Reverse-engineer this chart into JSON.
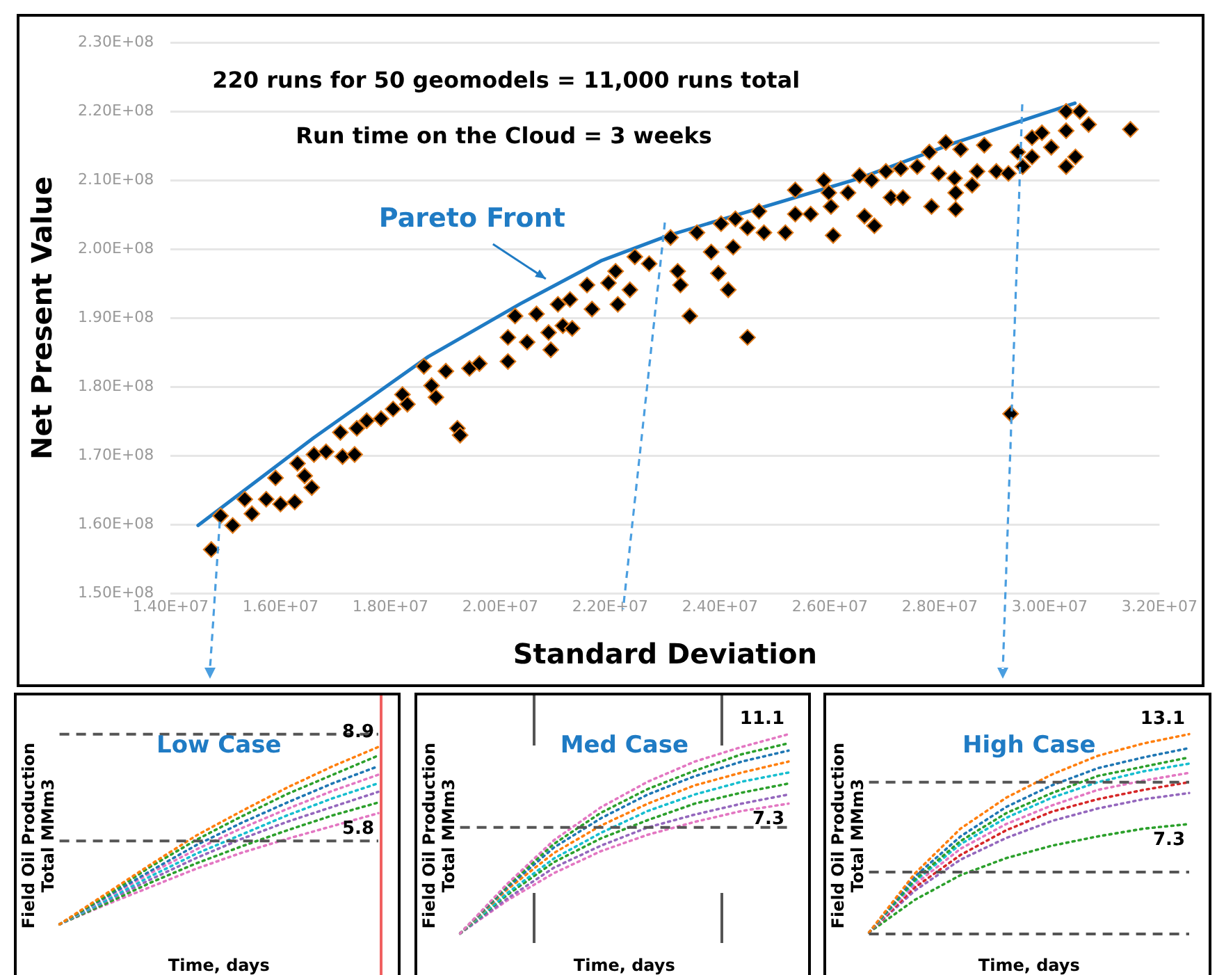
{
  "chart_data": [
    {
      "type": "scatter",
      "xlabel": "Standard Deviation",
      "ylabel": "Net Present Value",
      "xlim": [
        14000000,
        32000000
      ],
      "ylim": [
        150000000,
        230000000
      ],
      "xticks": [
        {
          "value": 14000000,
          "label": "1.40E+07"
        },
        {
          "value": 16000000,
          "label": "1.60E+07"
        },
        {
          "value": 18000000,
          "label": "1.80E+07"
        },
        {
          "value": 20000000,
          "label": "2.00E+07"
        },
        {
          "value": 22000000,
          "label": "2.20E+07"
        },
        {
          "value": 24000000,
          "label": "2.40E+07"
        },
        {
          "value": 26000000,
          "label": "2.60E+07"
        },
        {
          "value": 28000000,
          "label": "2.80E+07"
        },
        {
          "value": 30000000,
          "label": "3.00E+07"
        },
        {
          "value": 32000000,
          "label": "3.20E+07"
        }
      ],
      "yticks": [
        {
          "value": 150000000,
          "label": "1.50E+08"
        },
        {
          "value": 160000000,
          "label": "1.60E+08"
        },
        {
          "value": 170000000,
          "label": "1.70E+08"
        },
        {
          "value": 180000000,
          "label": "1.80E+08"
        },
        {
          "value": 190000000,
          "label": "1.90E+08"
        },
        {
          "value": 200000000,
          "label": "2.00E+08"
        },
        {
          "value": 210000000,
          "label": "2.10E+08"
        },
        {
          "value": 220000000,
          "label": "2.20E+08"
        },
        {
          "value": 230000000,
          "label": "2.30E+08"
        }
      ],
      "grid": "y",
      "legend": false,
      "marker": "diamond",
      "annotations": [
        "220 runs for 50 geomodels = 11,000 runs total",
        "Run time on the Cloud = 3 weeks",
        {
          "text": "Pareto Front",
          "x": 20880000,
          "y": 195100000
        }
      ],
      "series": [
        {
          "type": "scatter",
          "color": "#000000",
          "x": [
            14740000,
            14910000,
            15130000,
            15350000,
            15480000,
            15740000,
            15910000,
            16000000,
            16260000,
            16310000,
            16440000,
            16570000,
            16610000,
            16830000,
            17090000,
            17130000,
            17350000,
            17390000,
            17570000,
            17830000,
            18050000,
            18220000,
            18310000,
            18610000,
            18750000,
            18830000,
            19010000,
            19220000,
            19270000,
            19440000,
            19620000,
            20140000,
            20140000,
            20270000,
            20490000,
            20660000,
            20880000,
            20920000,
            21050000,
            21140000,
            21270000,
            21310000,
            21580000,
            21670000,
            21970000,
            22100000,
            22140000,
            22360000,
            22450000,
            22710000,
            23100000,
            23230000,
            23280000,
            23450000,
            23580000,
            23840000,
            23970000,
            24020000,
            24150000,
            24240000,
            24280000,
            24500000,
            24500000,
            24710000,
            24800000,
            25190000,
            25370000,
            25370000,
            25650000,
            25890000,
            25980000,
            26020000,
            26060000,
            26330000,
            26540000,
            26630000,
            26760000,
            26810000,
            27020000,
            27110000,
            27290000,
            27330000,
            27590000,
            27810000,
            27850000,
            27980000,
            28110000,
            28270000,
            28290000,
            28290000,
            28380000,
            28590000,
            28680000,
            28810000,
            29030000,
            29250000,
            29290000,
            29420000,
            29510000,
            29680000,
            29680000,
            29860000,
            30030000,
            30300000,
            30300000,
            30300000,
            30470000,
            30550000,
            30710000,
            31470000
          ],
          "values": [
            156400000,
            161300000,
            159900000,
            163700000,
            161600000,
            163700000,
            166800000,
            163000000,
            163300000,
            168900000,
            167100000,
            165400000,
            170200000,
            170600000,
            173400000,
            169900000,
            170200000,
            174000000,
            175100000,
            175400000,
            176800000,
            178900000,
            177500000,
            183000000,
            180200000,
            178500000,
            182300000,
            174000000,
            173000000,
            182700000,
            183400000,
            187200000,
            183700000,
            190300000,
            186500000,
            190600000,
            187900000,
            185400000,
            192000000,
            188900000,
            192700000,
            188500000,
            194800000,
            191300000,
            195100000,
            196800000,
            192000000,
            194100000,
            198900000,
            197900000,
            201700000,
            196800000,
            194800000,
            190300000,
            202400000,
            199600000,
            196500000,
            203700000,
            194100000,
            200300000,
            204400000,
            187200000,
            203100000,
            205500000,
            202400000,
            202400000,
            208600000,
            205100000,
            205100000,
            210000000,
            208200000,
            206200000,
            202000000,
            208200000,
            210700000,
            204800000,
            210000000,
            203400000,
            211300000,
            207500000,
            211700000,
            207500000,
            212000000,
            214100000,
            206200000,
            211000000,
            215500000,
            210300000,
            208200000,
            205800000,
            214500000,
            209300000,
            211300000,
            215100000,
            211300000,
            211000000,
            176100000,
            214100000,
            212000000,
            216200000,
            213400000,
            216900000,
            214800000,
            220000000,
            217200000,
            212000000,
            213400000,
            220000000,
            218100000,
            217400000
          ]
        },
        {
          "type": "line",
          "color": "#1f7bc4",
          "marker": "none",
          "line_style": "solid",
          "x": [
            14500000,
            16600000,
            18690000,
            20370000,
            21830000,
            23060000,
            26540000,
            28290000,
            30460000
          ],
          "values": [
            159900000,
            172600000,
            184400000,
            192100000,
            198300000,
            202000000,
            210300000,
            215500000,
            221200000
          ]
        }
      ]
    },
    {
      "type": "line",
      "title": "Low Case",
      "xlabel": "Time, days",
      "ylabel": "Field Oil Production Total MMm3",
      "tick_labels": false,
      "grid": false,
      "legend": false,
      "marker": "none",
      "line_style": "dotted",
      "categories": [
        null,
        null,
        null,
        null,
        null,
        null,
        null,
        null
      ],
      "ref_lines": [
        {
          "axis": "y",
          "value": 9.5,
          "color": "#555555",
          "line_style": "dashed"
        },
        {
          "axis": "y",
          "value": 4.5,
          "color": "#555555",
          "line_style": "dashed"
        }
      ],
      "series": [
        {
          "color": "#ff7f0e",
          "values": [
            0.6,
            2.0,
            3.4,
            4.75,
            5.9,
            7.0,
            8.0,
            8.9
          ],
          "value_labels": [
            null,
            null,
            null,
            null,
            null,
            null,
            null,
            "8.9"
          ]
        },
        {
          "color": "#2ca02c",
          "values": [
            0.6,
            1.9,
            3.3,
            4.55,
            5.65,
            6.7,
            7.6,
            8.5
          ]
        },
        {
          "color": "#1f77b4",
          "values": [
            0.6,
            1.85,
            3.1,
            4.3,
            5.35,
            6.3,
            7.2,
            8.0
          ]
        },
        {
          "color": "#e377c2",
          "values": [
            0.6,
            1.8,
            3.0,
            4.1,
            5.1,
            6.0,
            6.85,
            7.6
          ]
        },
        {
          "color": "#17becf",
          "values": [
            0.6,
            1.7,
            2.85,
            3.9,
            4.8,
            5.7,
            6.5,
            7.2
          ]
        },
        {
          "color": "#9467bd",
          "values": [
            0.6,
            1.65,
            2.7,
            3.7,
            4.6,
            5.4,
            6.1,
            6.8
          ]
        },
        {
          "color": "#2ca02c",
          "values": [
            0.6,
            1.55,
            2.55,
            3.45,
            4.25,
            5.0,
            5.7,
            6.3
          ]
        },
        {
          "color": "#e377c2",
          "values": [
            0.6,
            1.5,
            2.35,
            3.2,
            3.95,
            4.6,
            5.2,
            5.8
          ],
          "value_labels": [
            null,
            null,
            null,
            null,
            null,
            null,
            null,
            "5.8"
          ]
        }
      ]
    },
    {
      "type": "line",
      "title": "Med Case",
      "xlabel": "Time, days",
      "ylabel": "Field Oil Production Total MMm3",
      "tick_labels": false,
      "grid": false,
      "legend": false,
      "marker": "none",
      "line_style": "dotted",
      "categories": [
        null,
        null,
        null,
        null,
        null,
        null,
        null,
        null
      ],
      "ref_lines": [
        {
          "axis": "y",
          "value": 6.0,
          "color": "#555555",
          "line_style": "dashed"
        }
      ],
      "series": [
        {
          "color": "#e377c2",
          "values": [
            0.2,
            2.9,
            5.3,
            7.1,
            8.5,
            9.6,
            10.4,
            11.1
          ],
          "value_labels": [
            null,
            null,
            null,
            null,
            null,
            null,
            null,
            "11.1"
          ]
        },
        {
          "color": "#2ca02c",
          "values": [
            0.2,
            2.8,
            5.1,
            6.8,
            8.1,
            9.1,
            10.0,
            10.6
          ]
        },
        {
          "color": "#1f77b4",
          "values": [
            0.2,
            2.7,
            4.9,
            6.5,
            7.8,
            8.8,
            9.6,
            10.2
          ]
        },
        {
          "color": "#ff7f0e",
          "values": [
            0.2,
            2.6,
            4.6,
            6.1,
            7.3,
            8.3,
            9.0,
            9.6
          ]
        },
        {
          "color": "#17becf",
          "values": [
            0.2,
            2.4,
            4.3,
            5.7,
            6.9,
            7.8,
            8.5,
            9.0
          ]
        },
        {
          "color": "#2ca02c",
          "values": [
            0.2,
            2.3,
            4.1,
            5.4,
            6.4,
            7.3,
            7.9,
            8.4
          ]
        },
        {
          "color": "#9467bd",
          "values": [
            0.2,
            2.1,
            3.8,
            5.0,
            6.0,
            6.7,
            7.3,
            7.8
          ]
        },
        {
          "color": "#e377c2",
          "values": [
            0.2,
            2.0,
            3.5,
            4.7,
            5.6,
            6.3,
            6.9,
            7.3
          ],
          "value_labels": [
            null,
            null,
            null,
            null,
            null,
            null,
            null,
            "7.3"
          ]
        }
      ]
    },
    {
      "type": "line",
      "title": "High Case",
      "xlabel": "Time, days",
      "ylabel": "Field Oil Production Total MMm3",
      "tick_labels": false,
      "grid": false,
      "legend": false,
      "marker": "none",
      "line_style": "dotted",
      "categories": [
        null,
        null,
        null,
        null,
        null,
        null,
        null,
        null
      ],
      "ref_lines": [
        {
          "axis": "y",
          "value": 10.0,
          "color": "#555555",
          "line_style": "dashed"
        },
        {
          "axis": "y",
          "value": 4.2,
          "color": "#555555",
          "line_style": "dashed"
        },
        {
          "axis": "y",
          "value": 0.2,
          "color": "#555555",
          "line_style": "dashed"
        }
      ],
      "series": [
        {
          "color": "#ff7f0e",
          "values": [
            0.3,
            4.1,
            7.0,
            9.0,
            10.5,
            11.7,
            12.5,
            13.1
          ],
          "value_labels": [
            null,
            null,
            null,
            null,
            null,
            null,
            null,
            "13.1"
          ]
        },
        {
          "color": "#1f77b4",
          "values": [
            0.3,
            3.9,
            6.5,
            8.4,
            9.8,
            10.9,
            11.6,
            12.2
          ]
        },
        {
          "color": "#2ca02c",
          "values": [
            0.3,
            3.7,
            6.2,
            8.0,
            9.3,
            10.4,
            11.0,
            11.6
          ]
        },
        {
          "color": "#17becf",
          "values": [
            0.3,
            3.6,
            6.0,
            7.7,
            9.0,
            10.0,
            10.7,
            11.2
          ]
        },
        {
          "color": "#e377c2",
          "values": [
            0.3,
            3.4,
            5.7,
            7.3,
            8.5,
            9.5,
            10.1,
            10.6
          ]
        },
        {
          "color": "#d62728",
          "values": [
            0.3,
            3.2,
            5.3,
            6.9,
            8.1,
            8.9,
            9.5,
            10.0
          ]
        },
        {
          "color": "#9467bd",
          "values": [
            0.3,
            3.0,
            5.0,
            6.4,
            7.5,
            8.3,
            8.9,
            9.3
          ]
        },
        {
          "color": "#2ca02c",
          "values": [
            0.3,
            2.4,
            4.0,
            5.1,
            5.9,
            6.5,
            7.0,
            7.3
          ],
          "value_labels": [
            null,
            null,
            null,
            null,
            null,
            null,
            null,
            "7.3"
          ]
        }
      ]
    }
  ]
}
